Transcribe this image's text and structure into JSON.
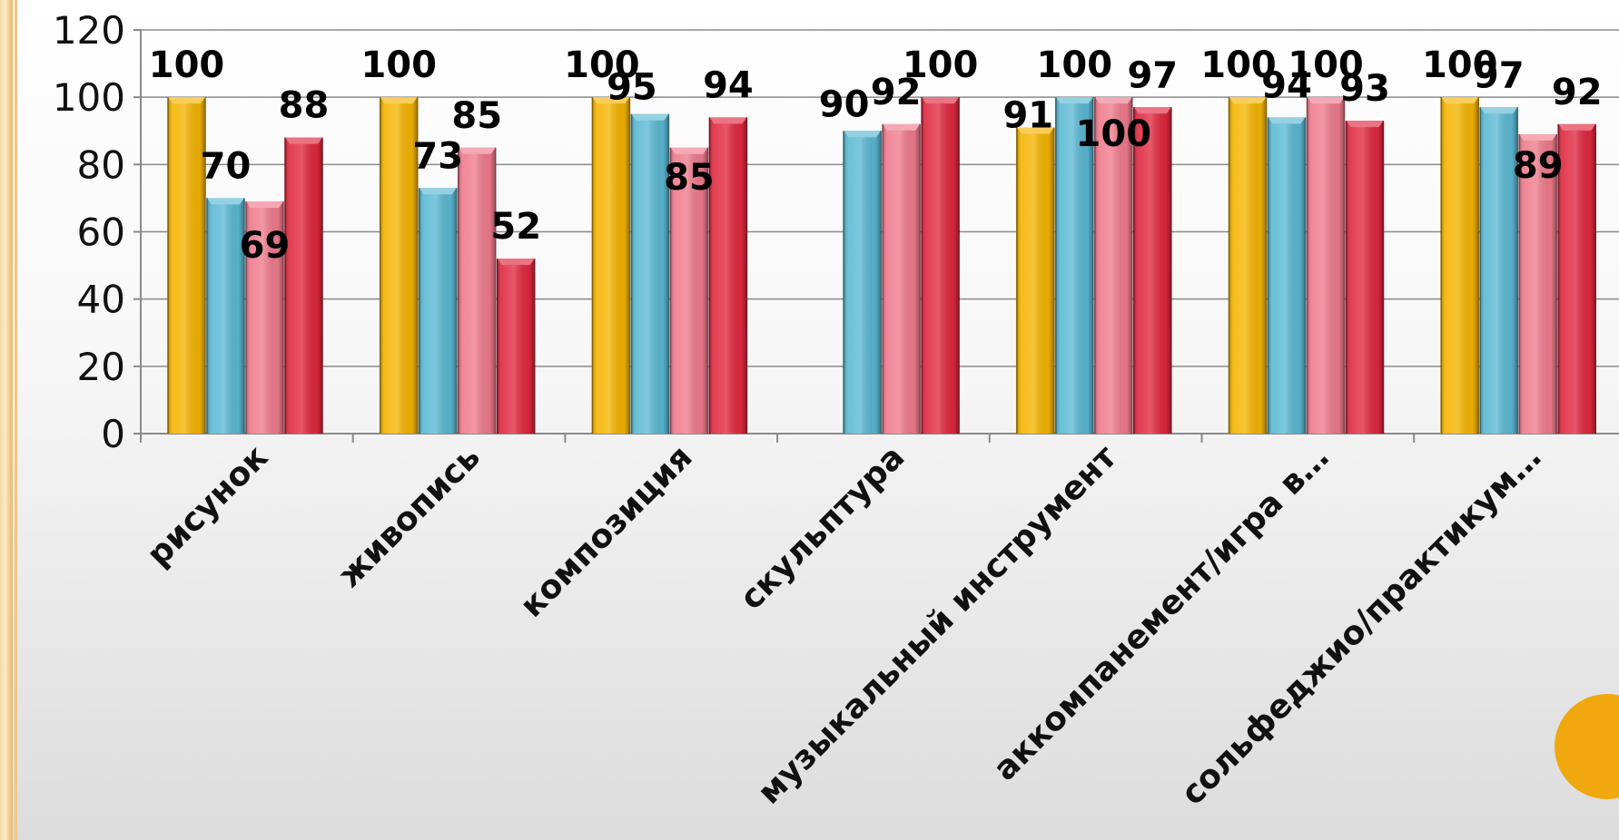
{
  "chart_data": {
    "type": "bar",
    "categories": [
      "рисунок",
      "живопись",
      "композиция",
      "скульптура",
      "музыкальный инструмент",
      "аккомпанемент/игра в…",
      "сольфеджио/практикум…"
    ],
    "series": [
      {
        "color": "#f5b400",
        "values": [
          100,
          100,
          100,
          null,
          91,
          100,
          100
        ]
      },
      {
        "color": "#5ab8d3",
        "values": [
          70,
          73,
          95,
          90,
          100,
          94,
          97
        ]
      },
      {
        "color": "#ef7a8c",
        "values": [
          69,
          85,
          85,
          92,
          100,
          100,
          89
        ]
      },
      {
        "color": "#e0283f",
        "values": [
          88,
          52,
          94,
          100,
          97,
          93,
          92
        ]
      }
    ],
    "ylim": [
      0,
      120
    ],
    "yticks": [
      0,
      20,
      40,
      60,
      80,
      100,
      120
    ],
    "grid": true,
    "legend": "none",
    "data_labels": true
  },
  "colors": {
    "accent_circle": "#f0a80e",
    "border": "#f0c585"
  }
}
